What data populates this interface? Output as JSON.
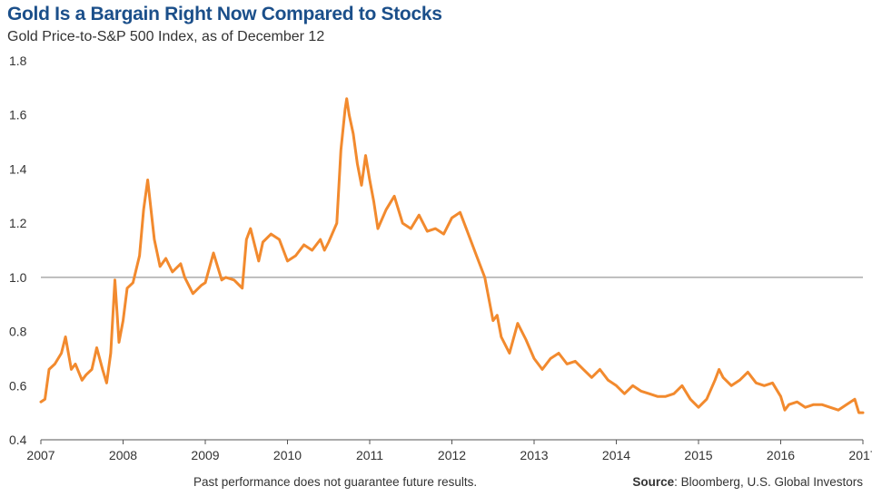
{
  "chart_data": {
    "type": "line",
    "title": "Gold Is a Bargain Right Now Compared to Stocks",
    "subtitle": "Gold Price-to-S&P 500 Index, as of December 12",
    "xlabel": "",
    "ylabel": "",
    "ylim": [
      0.4,
      1.8
    ],
    "yticks": [
      "0.4",
      "0.6",
      "0.8",
      "1.0",
      "1.2",
      "1.4",
      "1.6",
      "1.8"
    ],
    "xlim": [
      2007.0,
      2017.0
    ],
    "xticks": [
      "2007",
      "2008",
      "2009",
      "2010",
      "2011",
      "2012",
      "2013",
      "2014",
      "2015",
      "2016",
      "2017"
    ],
    "reference_line": 1.0,
    "grid": false,
    "series": [
      {
        "name": "",
        "color": "#f28a2e",
        "x": [
          2007.0,
          2007.05,
          2007.1,
          2007.17,
          2007.25,
          2007.3,
          2007.37,
          2007.42,
          2007.5,
          2007.55,
          2007.62,
          2007.68,
          2007.75,
          2007.8,
          2007.85,
          2007.9,
          2007.95,
          2008.0,
          2008.05,
          2008.12,
          2008.2,
          2008.25,
          2008.3,
          2008.38,
          2008.45,
          2008.52,
          2008.6,
          2008.7,
          2008.75,
          2008.85,
          2008.95,
          2009.0,
          2009.1,
          2009.2,
          2009.25,
          2009.35,
          2009.45,
          2009.5,
          2009.55,
          2009.65,
          2009.7,
          2009.8,
          2009.9,
          2010.0,
          2010.1,
          2010.2,
          2010.3,
          2010.4,
          2010.45,
          2010.5,
          2010.6,
          2010.65,
          2010.7,
          2010.72,
          2010.75,
          2010.8,
          2010.85,
          2010.9,
          2010.95,
          2011.0,
          2011.05,
          2011.1,
          2011.2,
          2011.3,
          2011.4,
          2011.5,
          2011.6,
          2011.7,
          2011.8,
          2011.9,
          2012.0,
          2012.1,
          2012.2,
          2012.3,
          2012.4,
          2012.5,
          2012.55,
          2012.6,
          2012.7,
          2012.8,
          2012.9,
          2013.0,
          2013.1,
          2013.2,
          2013.3,
          2013.4,
          2013.5,
          2013.6,
          2013.7,
          2013.8,
          2013.9,
          2014.0,
          2014.1,
          2014.2,
          2014.3,
          2014.4,
          2014.5,
          2014.6,
          2014.7,
          2014.8,
          2014.9,
          2015.0,
          2015.1,
          2015.2,
          2015.25,
          2015.3,
          2015.4,
          2015.5,
          2015.6,
          2015.65,
          2015.7,
          2015.8,
          2015.9,
          2016.0,
          2016.05,
          2016.1,
          2016.2,
          2016.3,
          2016.4,
          2016.5,
          2016.6,
          2016.7,
          2016.8,
          2016.9,
          2016.95,
          2017.0
        ],
        "y": [
          0.54,
          0.55,
          0.66,
          0.68,
          0.72,
          0.78,
          0.66,
          0.68,
          0.62,
          0.64,
          0.66,
          0.74,
          0.66,
          0.61,
          0.72,
          0.99,
          0.76,
          0.84,
          0.96,
          0.98,
          1.08,
          1.25,
          1.36,
          1.14,
          1.04,
          1.07,
          1.02,
          1.05,
          1.0,
          0.94,
          0.97,
          0.98,
          1.09,
          0.99,
          1.0,
          0.99,
          0.96,
          1.14,
          1.18,
          1.06,
          1.13,
          1.16,
          1.14,
          1.06,
          1.08,
          1.12,
          1.1,
          1.14,
          1.1,
          1.13,
          1.2,
          1.47,
          1.62,
          1.66,
          1.6,
          1.53,
          1.42,
          1.34,
          1.45,
          1.36,
          1.28,
          1.18,
          1.25,
          1.3,
          1.2,
          1.18,
          1.23,
          1.17,
          1.18,
          1.16,
          1.22,
          1.24,
          1.16,
          1.08,
          1.0,
          0.84,
          0.86,
          0.78,
          0.72,
          0.83,
          0.77,
          0.7,
          0.66,
          0.7,
          0.72,
          0.68,
          0.69,
          0.66,
          0.63,
          0.66,
          0.62,
          0.6,
          0.57,
          0.6,
          0.58,
          0.57,
          0.56,
          0.56,
          0.57,
          0.6,
          0.55,
          0.52,
          0.55,
          0.62,
          0.66,
          0.63,
          0.6,
          0.62,
          0.65,
          0.63,
          0.61,
          0.6,
          0.61,
          0.56,
          0.51,
          0.53,
          0.54,
          0.52,
          0.53,
          0.53,
          0.52,
          0.51,
          0.53,
          0.55,
          0.5,
          0.5
        ]
      }
    ]
  },
  "footer": {
    "disclaimer": "Past performance does not guarantee future results.",
    "source_label": "Source",
    "source_text": ": Bloomberg, U.S. Global Investors"
  }
}
